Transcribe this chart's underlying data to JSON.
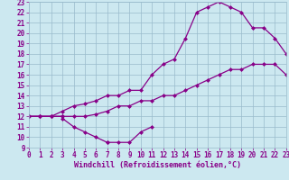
{
  "title": "",
  "xlabel": "Windchill (Refroidissement éolien,°C)",
  "ylabel": "",
  "bg_color": "#cce8f0",
  "line_color": "#880088",
  "grid_color": "#99bbcc",
  "xmin": 0,
  "xmax": 23,
  "ymin": 9,
  "ymax": 23,
  "line1_x": [
    0,
    1,
    2,
    3,
    3,
    4,
    5,
    6,
    7,
    7,
    8,
    9,
    10,
    11
  ],
  "line1_y": [
    12,
    12,
    12,
    12,
    11.8,
    11,
    10.5,
    10,
    9.5,
    9.5,
    9.5,
    9.5,
    10.5,
    11
  ],
  "line2_x": [
    0,
    1,
    2,
    3,
    4,
    5,
    6,
    7,
    8,
    9,
    10,
    11,
    12,
    13,
    14,
    15,
    16,
    17,
    18,
    19,
    20,
    21,
    22,
    23
  ],
  "line2_y": [
    12,
    12,
    12,
    12.5,
    13,
    13.2,
    13.5,
    14,
    14,
    14.5,
    14.5,
    16,
    17,
    17.5,
    19.5,
    22,
    22.5,
    23,
    22.5,
    22,
    20.5,
    20.5,
    19.5,
    18
  ],
  "line3_x": [
    0,
    1,
    2,
    3,
    4,
    5,
    6,
    7,
    8,
    9,
    10,
    11,
    12,
    13,
    14,
    15,
    16,
    17,
    18,
    19,
    20,
    21,
    22,
    23
  ],
  "line3_y": [
    12,
    12,
    12,
    12,
    12,
    12,
    12.2,
    12.5,
    13,
    13,
    13.5,
    13.5,
    14,
    14,
    14.5,
    15,
    15.5,
    16,
    16.5,
    16.5,
    17,
    17,
    17,
    16
  ],
  "marker_size": 2.5,
  "line_width": 0.9,
  "tick_fontsize": 5.5,
  "xlabel_fontsize": 6.0
}
